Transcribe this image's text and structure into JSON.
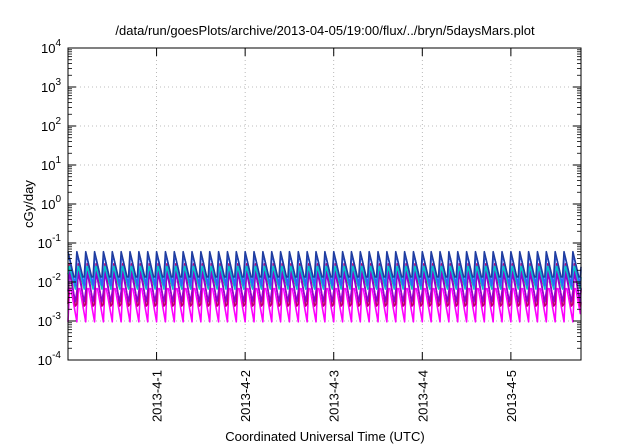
{
  "chart_data": {
    "type": "line",
    "title": "/data/run/goesPlots/archive/2013-04-05/19:00/flux/../bryn/5daysMars.plot",
    "xlabel": "Coordinated Universal Time (UTC)",
    "ylabel": "cGy/day",
    "yscale": "log",
    "ylim": [
      0.0001,
      10000
    ],
    "y_ticks": [
      {
        "base": "10",
        "exp": "-4",
        "value": 0.0001
      },
      {
        "base": "10",
        "exp": "-3",
        "value": 0.001
      },
      {
        "base": "10",
        "exp": "-2",
        "value": 0.01
      },
      {
        "base": "10",
        "exp": "-1",
        "value": 0.1
      },
      {
        "base": "10",
        "exp": "0",
        "value": 1
      },
      {
        "base": "10",
        "exp": "1",
        "value": 10
      },
      {
        "base": "10",
        "exp": "2",
        "value": 100
      },
      {
        "base": "10",
        "exp": "3",
        "value": 1000
      },
      {
        "base": "10",
        "exp": "4",
        "value": 10000
      }
    ],
    "xlim": [
      "2013-03-31T00:00",
      "2013-04-05T19:00"
    ],
    "x_ticks": [
      {
        "label": "2013-4-1",
        "value": "2013-04-01T00:00"
      },
      {
        "label": "2013-4-2",
        "value": "2013-04-02T00:00"
      },
      {
        "label": "2013-4-3",
        "value": "2013-04-03T00:00"
      },
      {
        "label": "2013-4-4",
        "value": "2013-04-04T00:00"
      },
      {
        "label": "2013-4-5",
        "value": "2013-04-05T00:00"
      }
    ],
    "grid": true,
    "legend": "none",
    "period_hours": 2.4,
    "series": [
      {
        "color": "#ff00ff",
        "peak": 0.01,
        "trough": 0.00095
      },
      {
        "color": "#c0006a",
        "peak": 0.03,
        "trough": 0.0015
      },
      {
        "color": "#9400d3",
        "peak": 0.02,
        "trough": 0.0025
      },
      {
        "color": "#00c8c8",
        "peak": 0.03,
        "trough": 0.006
      },
      {
        "color": "#3060ff",
        "peak": 0.055,
        "trough": 0.008
      },
      {
        "color": "#1e3ca0",
        "peak": 0.06,
        "trough": 0.01
      }
    ]
  }
}
